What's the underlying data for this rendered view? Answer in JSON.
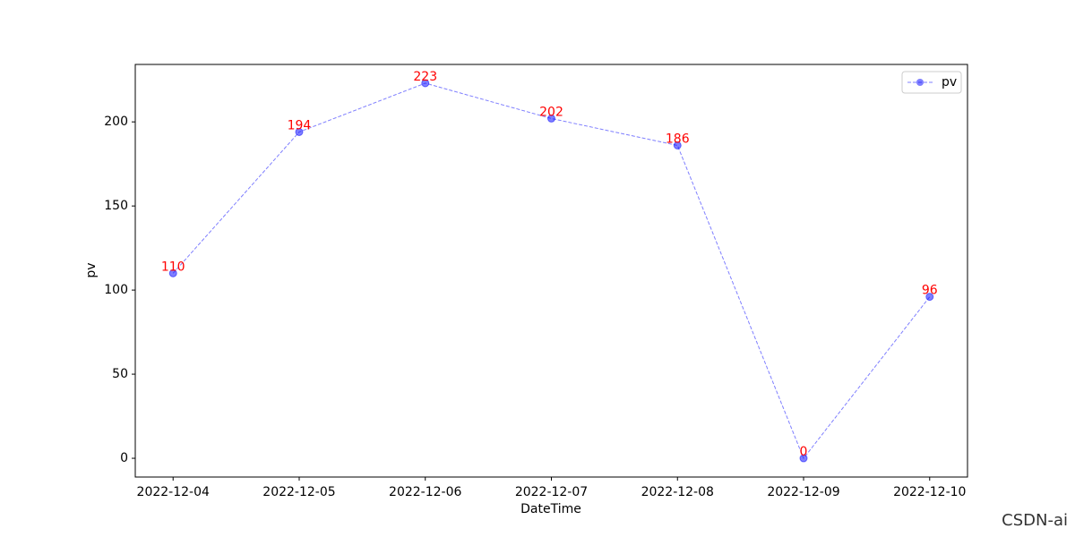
{
  "chart_data": {
    "type": "line",
    "xlabel": "DateTime",
    "ylabel": "pv",
    "categories": [
      "2022-12-04",
      "2022-12-05",
      "2022-12-06",
      "2022-12-07",
      "2022-12-08",
      "2022-12-09",
      "2022-12-10"
    ],
    "series": [
      {
        "name": "pv",
        "color": "#0000ff",
        "values": [
          110,
          194,
          223,
          202,
          186,
          0,
          96
        ]
      }
    ],
    "label_color": "#ff0000",
    "ylim": [
      -11.15,
      234.15
    ],
    "yticks": [
      0,
      50,
      100,
      150,
      200
    ],
    "legend": "upper right",
    "grid": false
  },
  "watermark": "CSDN-ai"
}
